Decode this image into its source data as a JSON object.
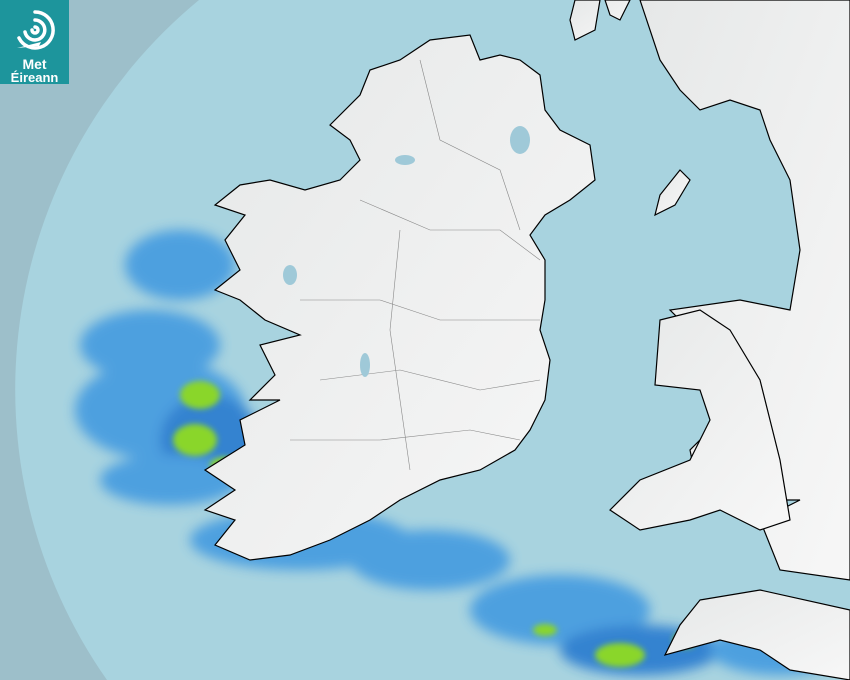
{
  "logo": {
    "line1": "Met",
    "line2": "Éireann"
  },
  "colors": {
    "outside_coverage": "#9dbfca",
    "radar_coverage": "#a8d3df",
    "land": "#f1f3f3",
    "light_rain": "#4a9ee0",
    "moderate_rain": "#2f7fd0",
    "heavy_rain": "#8ad62a",
    "brand": "#1d959c"
  },
  "legend": []
}
